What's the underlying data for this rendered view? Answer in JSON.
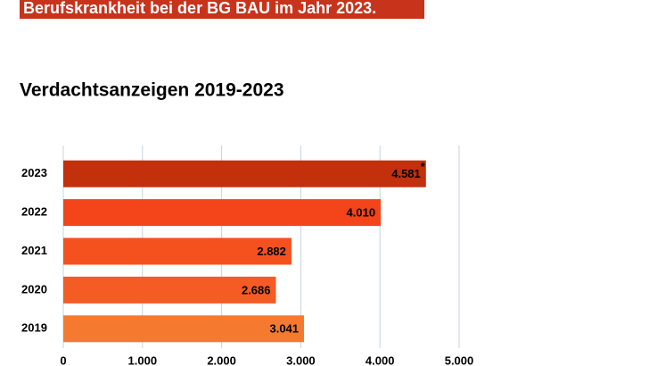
{
  "header": {
    "banner": "Berufskrankheit bei der BG BAU im Jahr 2023."
  },
  "chart_data": {
    "type": "hbar",
    "title": "Verdachtsanzeigen 2019-2023",
    "categories": [
      "2023",
      "2022",
      "2021",
      "2020",
      "2019"
    ],
    "values": [
      4581,
      4010,
      2882,
      2686,
      3041
    ],
    "value_labels": [
      "4.581",
      "4.010",
      "2.882",
      "2.686",
      "3.041"
    ],
    "annotation": "*",
    "colors": [
      "#c2300c",
      "#f4441a",
      "#f5511f",
      "#f55c24",
      "#f57a30"
    ],
    "xlim": [
      0,
      5000
    ],
    "xticks": [
      0,
      {
        "value": 1000,
        "label": "1.000"
      },
      {
        "value": 2000,
        "label": "2.000"
      },
      {
        "value": 3000,
        "label": "3.000"
      },
      {
        "value": 4000,
        "label": "4.000"
      },
      {
        "value": 5000,
        "label": "5.000"
      }
    ],
    "grid": true
  }
}
